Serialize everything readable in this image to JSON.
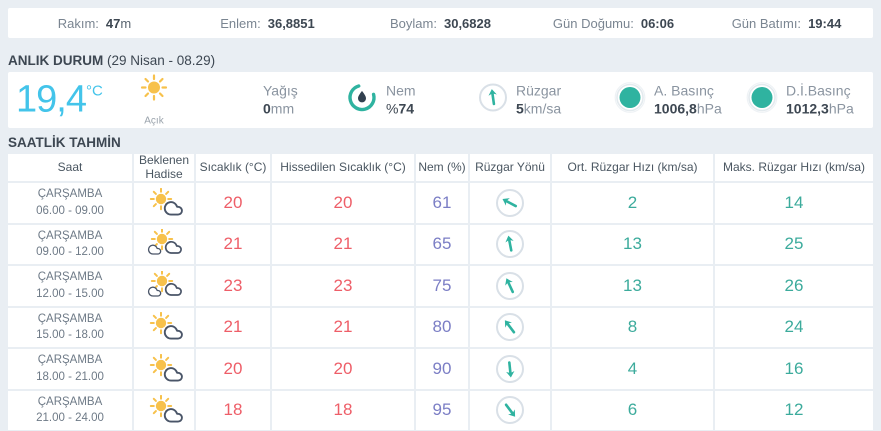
{
  "topbar": {
    "items": [
      {
        "label": "Rakım:",
        "value": "47",
        "suffix": "m"
      },
      {
        "label": "Enlem:",
        "value": "36,8851",
        "suffix": ""
      },
      {
        "label": "Boylam:",
        "value": "30,6828",
        "suffix": ""
      },
      {
        "label": "Gün Doğumu:",
        "value": "06:06",
        "suffix": ""
      },
      {
        "label": "Gün Batımı:",
        "value": "19:44",
        "suffix": ""
      }
    ]
  },
  "current": {
    "section_title": "ANLIK DURUM",
    "section_subtitle": "(29 Nisan - 08.29)",
    "temperature": "19,4",
    "temperature_unit": "°C",
    "condition": "Açık",
    "precip_label": "Yağış",
    "precip_value": "0",
    "precip_unit": "mm",
    "humidity_label": "Nem",
    "humidity_prefix": "%",
    "humidity_value": "74",
    "wind_label": "Rüzgar",
    "wind_value": "5",
    "wind_unit": "km/sa",
    "pressure_label": "A. Basınç",
    "pressure_value": "1006,8",
    "pressure_unit": "hPa",
    "sea_pressure_label": "D.İ.Basınç",
    "sea_pressure_value": "1012,3",
    "sea_pressure_unit": "hPa"
  },
  "forecast": {
    "section_title": "SAATLİK TAHMİN",
    "columns": [
      "Saat",
      "Beklenen Hadise",
      "Sıcaklık (°C)",
      "Hissedilen Sıcaklık (°C)",
      "Nem (%)",
      "Rüzgar Yönü",
      "Ort. Rüzgar Hızı (km/sa)",
      "Maks. Rüzgar Hızı (km/sa)"
    ],
    "rows": [
      {
        "day": "ÇARŞAMBA",
        "time": "06.00 - 09.00",
        "icon": "sun-cloud",
        "temp": "20",
        "feels": "20",
        "humidity": "61",
        "wind_dir_deg": -62,
        "avg_wind": "2",
        "max_wind": "14"
      },
      {
        "day": "ÇARŞAMBA",
        "time": "09.00 - 12.00",
        "icon": "sun-clouds",
        "temp": "21",
        "feels": "21",
        "humidity": "65",
        "wind_dir_deg": -11,
        "avg_wind": "13",
        "max_wind": "25"
      },
      {
        "day": "ÇARŞAMBA",
        "time": "12.00 - 15.00",
        "icon": "sun-clouds",
        "temp": "23",
        "feels": "23",
        "humidity": "75",
        "wind_dir_deg": -25,
        "avg_wind": "13",
        "max_wind": "26"
      },
      {
        "day": "ÇARŞAMBA",
        "time": "15.00 - 18.00",
        "icon": "sun-cloud",
        "temp": "21",
        "feels": "21",
        "humidity": "80",
        "wind_dir_deg": -37,
        "avg_wind": "8",
        "max_wind": "24"
      },
      {
        "day": "ÇARŞAMBA",
        "time": "18.00 - 21.00",
        "icon": "sun-cloud",
        "temp": "20",
        "feels": "20",
        "humidity": "90",
        "wind_dir_deg": 174,
        "avg_wind": "4",
        "max_wind": "16"
      },
      {
        "day": "ÇARŞAMBA",
        "time": "21.00 - 24.00",
        "icon": "sun-cloud",
        "temp": "18",
        "feels": "18",
        "humidity": "95",
        "wind_dir_deg": 143,
        "avg_wind": "6",
        "max_wind": "12"
      }
    ]
  },
  "colors": {
    "teal": "#2fb3a0",
    "red": "#ee5e68",
    "purple": "#7b7ec5",
    "light_blue": "#43c4ea",
    "yellow": "#f7c14b"
  }
}
